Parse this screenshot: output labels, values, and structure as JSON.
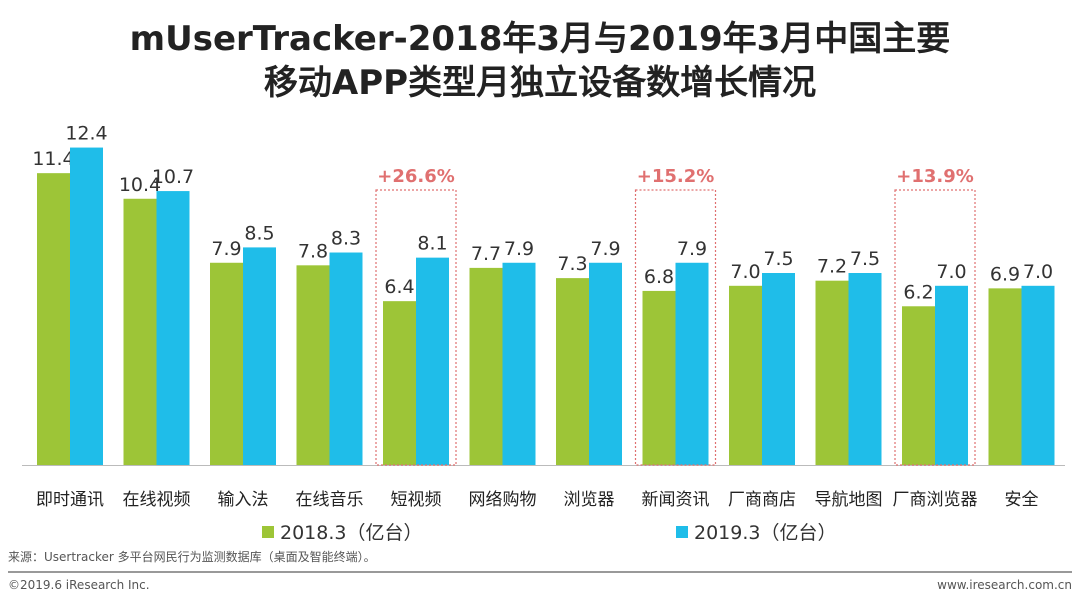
{
  "title_line1": "mUserTracker-2018年3月与2019年3月中国主要",
  "title_line2": "移动APP类型月独立设备数增长情况",
  "chart_data": {
    "type": "bar",
    "categories": [
      "即时通讯",
      "在线视频",
      "输入法",
      "在线音乐",
      "短视频",
      "网络购物",
      "浏览器",
      "新闻资讯",
      "厂商商店",
      "导航地图",
      "厂商浏览器",
      "安全"
    ],
    "series": [
      {
        "name": "2018.3（亿台）",
        "color": "#9dc537",
        "values": [
          11.4,
          10.4,
          7.9,
          7.8,
          6.4,
          7.7,
          7.3,
          6.8,
          7.0,
          7.2,
          6.2,
          6.9
        ]
      },
      {
        "name": "2019.3（亿台）",
        "color": "#1fbde9",
        "values": [
          12.4,
          10.7,
          8.5,
          8.3,
          8.1,
          7.9,
          7.9,
          7.9,
          7.5,
          7.5,
          7.0,
          7.0
        ]
      }
    ],
    "annotations": [
      {
        "category": "短视频",
        "text": "+26.6%"
      },
      {
        "category": "新闻资讯",
        "text": "+15.2%"
      },
      {
        "category": "厂商浏览器",
        "text": "+13.9%"
      }
    ],
    "annotation_color": "#e07070",
    "legend_placement": "bottom",
    "ylim": [
      0,
      12.4
    ],
    "grid": false
  },
  "source": "来源：Usertracker 多平台网民行为监测数据库（桌面及智能终端）。",
  "footer_left": "©2019.6 iResearch Inc.",
  "footer_right": "www.iresearch.com.cn"
}
